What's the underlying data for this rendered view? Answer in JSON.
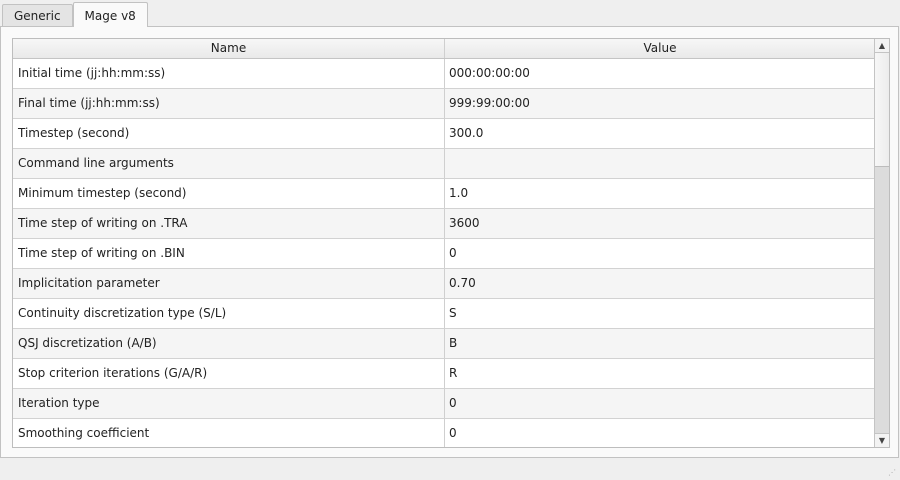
{
  "tabs": [
    {
      "label": "Generic",
      "active": false
    },
    {
      "label": "Mage v8",
      "active": true
    }
  ],
  "table": {
    "columns": [
      "Name",
      "Value"
    ],
    "rows": [
      [
        "Initial time (jj:hh:mm:ss)",
        "000:00:00:00"
      ],
      [
        "Final time (jj:hh:mm:ss)",
        "999:99:00:00"
      ],
      [
        "Timestep (second)",
        "300.0"
      ],
      [
        "Command line arguments",
        ""
      ],
      [
        "Minimum timestep (second)",
        "1.0"
      ],
      [
        "Time step of writing on .TRA",
        "3600"
      ],
      [
        "Time step of writing on .BIN",
        "0"
      ],
      [
        "Implicitation parameter",
        "0.70"
      ],
      [
        "Continuity discretization type (S/L)",
        "S"
      ],
      [
        "QSJ discretization (A/B)",
        "B"
      ],
      [
        "Stop criterion iterations (G/A/R)",
        "R"
      ],
      [
        "Iteration type",
        "0"
      ],
      [
        "Smoothing coefficient",
        "0"
      ]
    ]
  },
  "scrollbar": {
    "position": 0
  }
}
